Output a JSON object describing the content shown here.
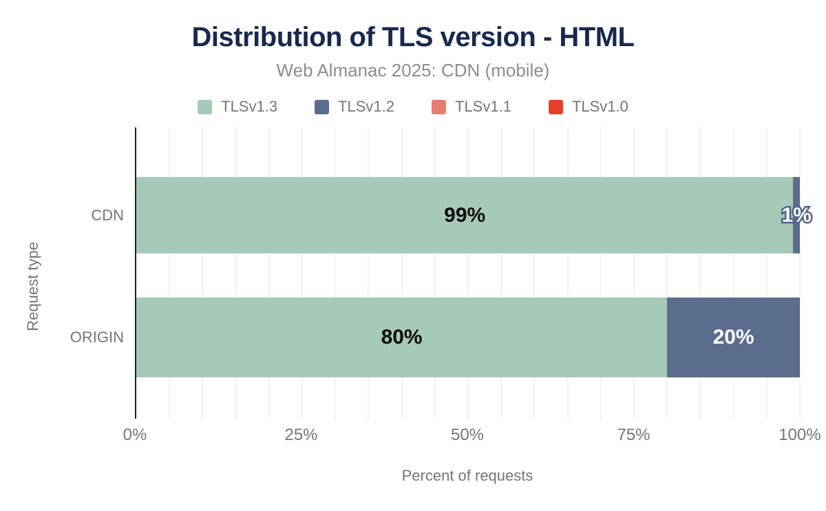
{
  "title": "Distribution of TLS version - HTML",
  "subtitle": "Web Almanac 2025: CDN (mobile)",
  "legend": [
    {
      "label": "TLSv1.3",
      "color": "#a6cab7"
    },
    {
      "label": "TLSv1.2",
      "color": "#5a6d8c"
    },
    {
      "label": "TLSv1.1",
      "color": "#e87c72"
    },
    {
      "label": "TLSv1.0",
      "color": "#e6402d"
    }
  ],
  "chart_data": {
    "type": "bar",
    "orientation": "horizontal",
    "stacked": true,
    "title": "Distribution of TLS version - HTML",
    "subtitle": "Web Almanac 2025: CDN (mobile)",
    "xlabel": "Percent of requests",
    "ylabel": "Request type",
    "xlim": [
      0,
      100
    ],
    "grid": true,
    "grid_step": 5,
    "legend_position": "top",
    "categories": [
      "CDN",
      "ORIGIN"
    ],
    "series": [
      {
        "name": "TLSv1.3",
        "color": "#a6cab7",
        "values": [
          99,
          80
        ]
      },
      {
        "name": "TLSv1.2",
        "color": "#5a6d8c",
        "values": [
          1,
          20
        ]
      },
      {
        "name": "TLSv1.1",
        "color": "#e87c72",
        "values": [
          0,
          0
        ]
      },
      {
        "name": "TLSv1.0",
        "color": "#e6402d",
        "values": [
          0,
          0
        ]
      }
    ],
    "xticks": [
      {
        "value": 0,
        "label": "0%"
      },
      {
        "value": 25,
        "label": "25%"
      },
      {
        "value": 50,
        "label": "50%"
      },
      {
        "value": 75,
        "label": "75%"
      },
      {
        "value": 100,
        "label": "100%"
      }
    ],
    "bars": [
      {
        "category": "CDN",
        "segments": [
          {
            "series": "TLSv1.3",
            "value": 99,
            "color": "#a6cab7",
            "label": "99%",
            "label_style": "dark"
          },
          {
            "series": "TLSv1.2",
            "value": 1,
            "color": "#5a6d8c",
            "label": "1%",
            "label_style": "outlined"
          }
        ]
      },
      {
        "category": "ORIGIN",
        "segments": [
          {
            "series": "TLSv1.3",
            "value": 80,
            "color": "#a6cab7",
            "label": "80%",
            "label_style": "dark"
          },
          {
            "series": "TLSv1.2",
            "value": 20,
            "color": "#5a6d8c",
            "label": "20%",
            "label_style": "light"
          }
        ]
      }
    ]
  },
  "colors": {
    "title_text": "#19294d",
    "subtitle_text": "#8d8d8d",
    "axis_text": "#757575",
    "gridline": "#f1f1f1",
    "axis_line": "#1f1f1f",
    "label_dark": "#0a0a0a",
    "label_light": "#ffffff",
    "label_outline": "#51658a"
  }
}
